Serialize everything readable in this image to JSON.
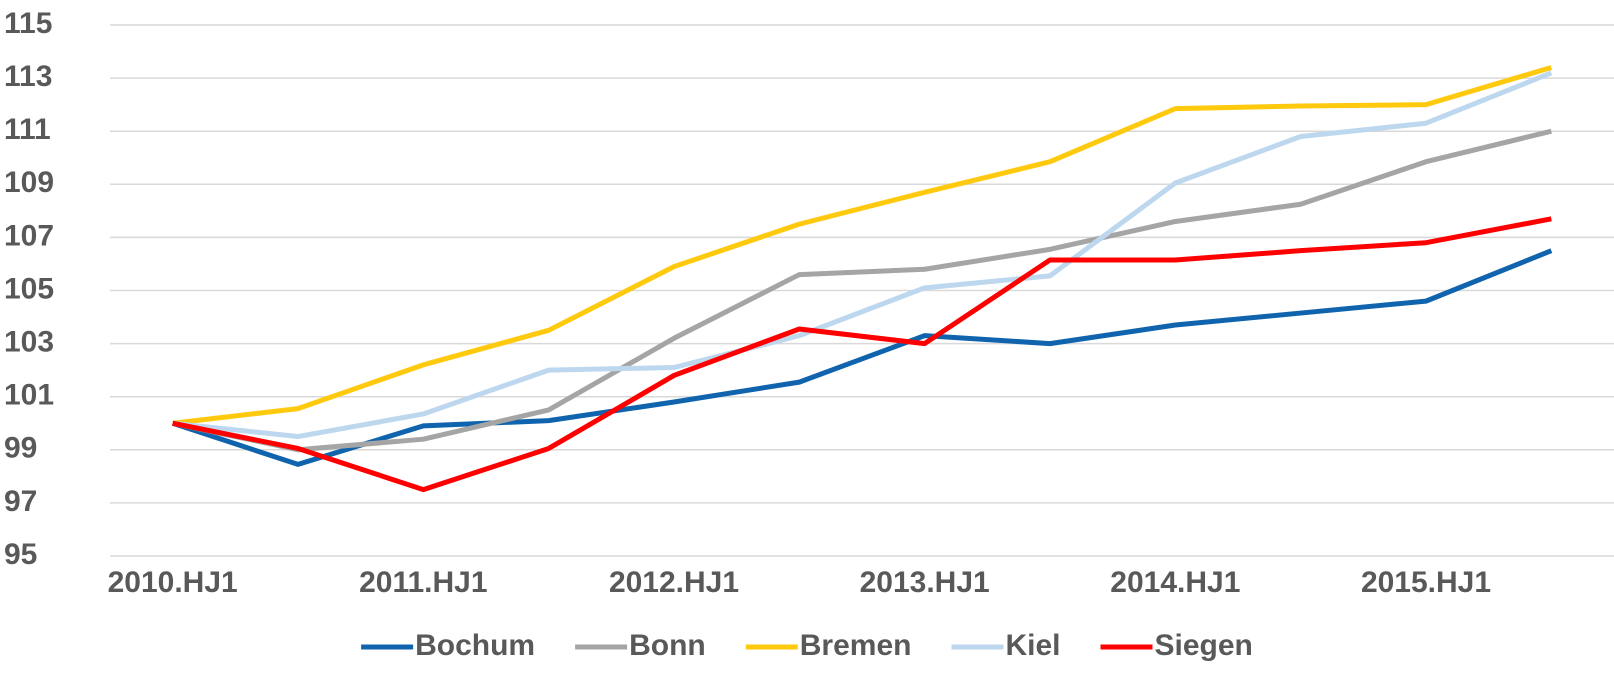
{
  "chart_data": {
    "type": "line",
    "categories": [
      "2010.HJ1",
      null,
      "2011.HJ1",
      null,
      "2012.HJ1",
      null,
      "2013.HJ1",
      null,
      "2014.HJ1",
      null,
      "2015.HJ1",
      null
    ],
    "series": [
      {
        "name": "Bochum",
        "color": "#0f64ad",
        "values": [
          100,
          98.45,
          99.9,
          100.1,
          100.8,
          101.55,
          103.3,
          103.0,
          103.7,
          104.15,
          104.6,
          106.5
        ]
      },
      {
        "name": "Bonn",
        "color": "#a5a5a5",
        "values": [
          100,
          99.0,
          99.4,
          100.5,
          103.2,
          105.6,
          105.8,
          106.55,
          107.6,
          108.25,
          109.85,
          111.0
        ]
      },
      {
        "name": "Bremen",
        "color": "#ffc90e",
        "values": [
          100,
          100.55,
          102.2,
          103.5,
          105.9,
          107.5,
          108.7,
          109.85,
          111.85,
          111.95,
          112.0,
          113.4
        ]
      },
      {
        "name": "Kiel",
        "color": "#bdd7ee",
        "values": [
          100,
          99.5,
          100.35,
          102.0,
          102.1,
          103.3,
          105.1,
          105.55,
          109.05,
          110.8,
          111.3,
          113.2
        ]
      },
      {
        "name": "Siegen",
        "color": "#ff0000",
        "values": [
          100,
          99.05,
          97.5,
          99.05,
          101.8,
          103.55,
          103.0,
          106.15,
          106.15,
          106.5,
          106.8,
          107.7
        ]
      }
    ],
    "ylim": [
      95,
      115
    ],
    "yticks": [
      95,
      97,
      99,
      101,
      103,
      105,
      107,
      109,
      111,
      113,
      115
    ],
    "grid": true,
    "legend": "bottom"
  }
}
